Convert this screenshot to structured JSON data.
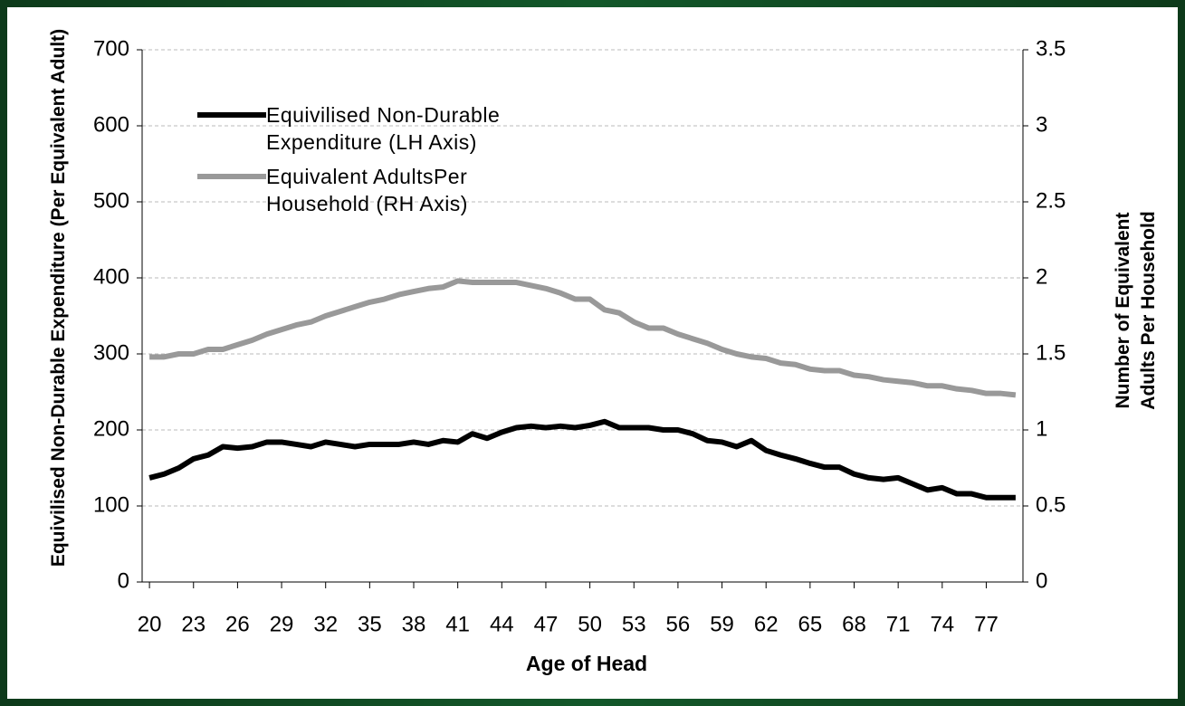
{
  "chart_data": {
    "type": "line",
    "x_label": "Age of Head",
    "y_label": "Equivilised Non-Durable Expenditure (Per Equivalent Adult)",
    "y2_label": "Number of Equivalent Adults Per Household",
    "x": [
      20,
      21,
      22,
      23,
      24,
      25,
      26,
      27,
      28,
      29,
      30,
      31,
      32,
      33,
      34,
      35,
      36,
      37,
      38,
      39,
      40,
      41,
      42,
      43,
      44,
      45,
      46,
      47,
      48,
      49,
      50,
      51,
      52,
      53,
      54,
      55,
      56,
      57,
      58,
      59,
      60,
      61,
      62,
      63,
      64,
      65,
      66,
      67,
      68,
      69,
      70,
      71,
      72,
      73,
      74,
      75,
      76,
      77,
      78,
      79
    ],
    "xlim": [
      19.5,
      79.5
    ],
    "xticks": [
      20,
      23,
      26,
      29,
      32,
      35,
      38,
      41,
      44,
      47,
      50,
      53,
      56,
      59,
      62,
      65,
      68,
      71,
      74,
      77
    ],
    "ylim": [
      0,
      700
    ],
    "yticks": [
      0,
      100,
      200,
      300,
      400,
      500,
      600,
      700
    ],
    "y2lim": [
      0,
      3.5
    ],
    "y2ticks": [
      0,
      0.5,
      1,
      1.5,
      2,
      2.5,
      3,
      3.5
    ],
    "grid": true,
    "series": [
      {
        "name": "Equivilised Non-Durable Expenditure (LH Axis)",
        "color": "#000000",
        "values": [
          137,
          142,
          150,
          162,
          167,
          178,
          176,
          178,
          184,
          184,
          181,
          178,
          184,
          181,
          178,
          181,
          181,
          181,
          184,
          181,
          186,
          184,
          195,
          189,
          197,
          203,
          205,
          203,
          205,
          203,
          206,
          211,
          203,
          203,
          203,
          200,
          200,
          195,
          186,
          184,
          178,
          186,
          173,
          167,
          162,
          156,
          151,
          151,
          142,
          137,
          135,
          137,
          129,
          121,
          124,
          116,
          116,
          111,
          111,
          111
        ]
      },
      {
        "name": "Equivalent AdultsPer Household (RH Axis)",
        "color": "#999999",
        "axis": "y2",
        "values": [
          1.48,
          1.48,
          1.5,
          1.5,
          1.53,
          1.53,
          1.56,
          1.59,
          1.63,
          1.66,
          1.69,
          1.71,
          1.75,
          1.78,
          1.81,
          1.84,
          1.86,
          1.89,
          1.91,
          1.93,
          1.94,
          1.98,
          1.97,
          1.97,
          1.97,
          1.97,
          1.95,
          1.93,
          1.9,
          1.86,
          1.86,
          1.79,
          1.77,
          1.71,
          1.67,
          1.67,
          1.63,
          1.6,
          1.57,
          1.53,
          1.5,
          1.48,
          1.47,
          1.44,
          1.43,
          1.4,
          1.39,
          1.39,
          1.36,
          1.35,
          1.33,
          1.32,
          1.31,
          1.29,
          1.29,
          1.27,
          1.26,
          1.24,
          1.24,
          1.23
        ]
      }
    ]
  }
}
